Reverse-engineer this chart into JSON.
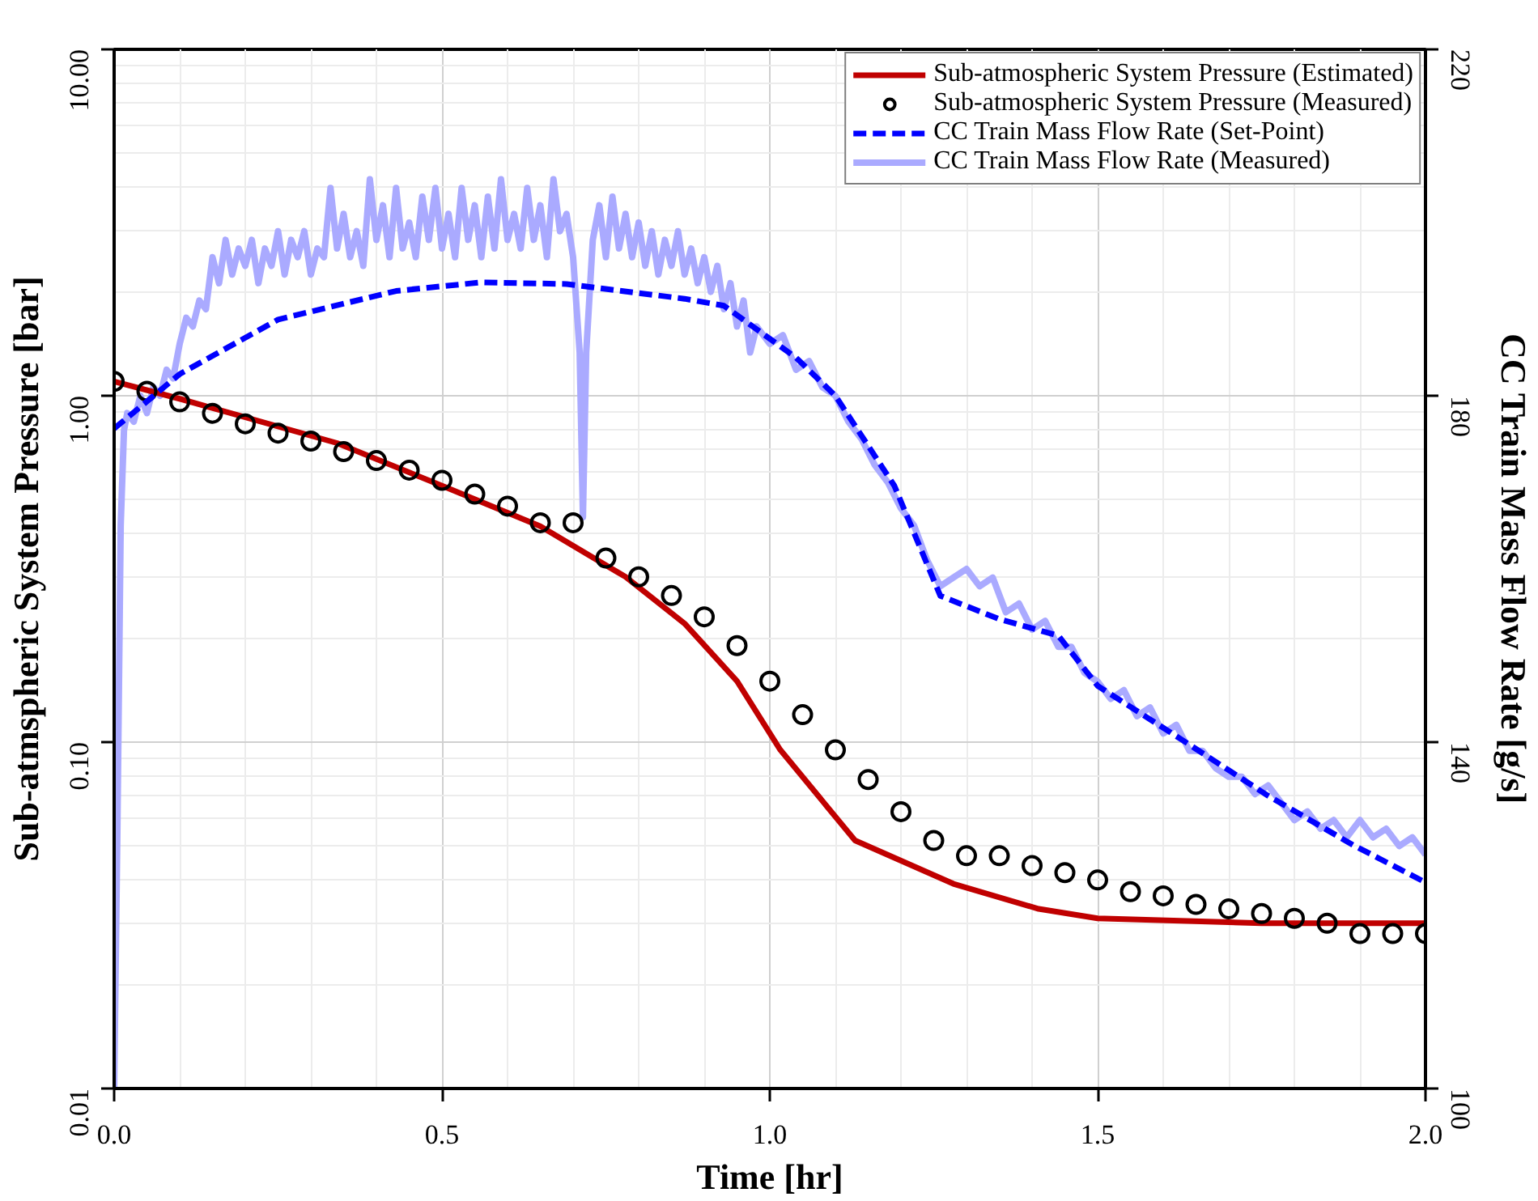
{
  "chart_data": {
    "type": "line",
    "xlabel": "Time [hr]",
    "ylabel": "Sub-atmspheric System Pressure [bar]",
    "y2label": "CC Train Mass Flow Rate [g/s]",
    "xlim": [
      0,
      2.0
    ],
    "xticks": [
      {
        "value": 0,
        "label": "0.0"
      },
      {
        "value": 0.5,
        "label": "0.5"
      },
      {
        "value": 1.0,
        "label": "1.0"
      },
      {
        "value": 1.5,
        "label": "1.5"
      },
      {
        "value": 2.0,
        "label": "2.0"
      }
    ],
    "ylim": [
      0.01,
      10
    ],
    "yticks": [
      {
        "value": 0.01,
        "label": "0.01"
      },
      {
        "value": 0.1,
        "label": "0.10"
      },
      {
        "value": 1,
        "label": "1.00"
      },
      {
        "value": 10,
        "label": "10.00"
      }
    ],
    "y2lim": [
      100,
      220
    ],
    "y2ticks": [
      100,
      140,
      180,
      220
    ],
    "log": "y",
    "grid": true,
    "legend": "top right",
    "series": [
      {
        "name": "Sub-atmospheric System Pressure (Estimated)",
        "color": "#c00000",
        "line_style": "solid",
        "x": [
          0,
          0.1,
          0.34,
          0.51,
          0.65,
          0.78,
          0.87,
          0.95,
          1.016,
          1.13,
          1.28,
          1.41,
          1.5,
          1.75,
          2.0
        ],
        "values": [
          1.1,
          0.98,
          0.73,
          0.54,
          0.42,
          0.3,
          0.22,
          0.15,
          0.095,
          0.052,
          0.039,
          0.033,
          0.031,
          0.03,
          0.03
        ]
      },
      {
        "name": "Sub-atmospheric System Pressure (Measured)",
        "type": "scatter",
        "marker": "circle",
        "color": "#000000",
        "x": [
          0,
          0.05,
          0.1,
          0.15,
          0.2,
          0.25,
          0.3,
          0.35,
          0.4,
          0.45,
          0.5,
          0.55,
          0.6,
          0.65,
          0.7,
          0.75,
          0.8,
          0.85,
          0.9,
          0.95,
          1.0,
          1.05,
          1.1,
          1.15,
          1.2,
          1.25,
          1.3,
          1.35,
          1.4,
          1.45,
          1.5,
          1.55,
          1.6,
          1.65,
          1.7,
          1.75,
          1.8,
          1.85,
          1.9,
          1.95,
          2.0
        ],
        "values": [
          1.1,
          1.03,
          0.96,
          0.89,
          0.83,
          0.78,
          0.74,
          0.69,
          0.65,
          0.61,
          0.57,
          0.52,
          0.48,
          0.43,
          0.43,
          0.34,
          0.3,
          0.265,
          0.23,
          0.19,
          0.15,
          0.12,
          0.095,
          0.078,
          0.063,
          0.052,
          0.047,
          0.047,
          0.044,
          0.042,
          0.04,
          0.037,
          0.036,
          0.034,
          0.033,
          0.032,
          0.031,
          0.03,
          0.028,
          0.028,
          0.028
        ]
      },
      {
        "name": "CC Train Mass Flow Rate (Set-Point)",
        "axis": "y2",
        "color": "#0000ff",
        "line_style": "dashed",
        "x": [
          0,
          0.1,
          0.25,
          0.43,
          0.56,
          0.69,
          0.87,
          0.93,
          1.04,
          1.1,
          1.19,
          1.26,
          1.35,
          1.44,
          1.5,
          1.63,
          1.76,
          1.89,
          2.0
        ],
        "values": [
          176.2,
          182.5,
          188.8,
          192.1,
          193.1,
          192.9,
          191.2,
          190.4,
          184.4,
          180,
          169.6,
          156.9,
          154.2,
          152.3,
          146.5,
          140.2,
          133.8,
          128.1,
          123.8
        ]
      },
      {
        "name": "CC Train Mass Flow Rate (Measured)",
        "axis": "y2",
        "color": "#aaaaff",
        "line_style": "solid",
        "x": [
          0.0,
          0.005,
          0.01,
          0.015,
          0.02,
          0.03,
          0.04,
          0.05,
          0.06,
          0.07,
          0.08,
          0.09,
          0.1,
          0.11,
          0.12,
          0.13,
          0.14,
          0.15,
          0.16,
          0.17,
          0.18,
          0.19,
          0.2,
          0.21,
          0.22,
          0.23,
          0.24,
          0.25,
          0.26,
          0.27,
          0.28,
          0.29,
          0.3,
          0.31,
          0.32,
          0.33,
          0.34,
          0.35,
          0.36,
          0.37,
          0.38,
          0.39,
          0.4,
          0.41,
          0.42,
          0.43,
          0.44,
          0.45,
          0.46,
          0.47,
          0.48,
          0.49,
          0.5,
          0.51,
          0.52,
          0.53,
          0.54,
          0.55,
          0.56,
          0.57,
          0.58,
          0.59,
          0.6,
          0.61,
          0.62,
          0.63,
          0.64,
          0.65,
          0.66,
          0.67,
          0.68,
          0.69,
          0.7,
          0.71,
          0.715,
          0.72,
          0.73,
          0.74,
          0.75,
          0.76,
          0.77,
          0.78,
          0.79,
          0.8,
          0.81,
          0.82,
          0.83,
          0.84,
          0.85,
          0.86,
          0.87,
          0.88,
          0.89,
          0.9,
          0.91,
          0.92,
          0.93,
          0.94,
          0.95,
          0.96,
          0.97,
          0.98,
          1.0,
          1.02,
          1.04,
          1.06,
          1.08,
          1.1,
          1.12,
          1.14,
          1.16,
          1.18,
          1.2,
          1.22,
          1.24,
          1.26,
          1.28,
          1.3,
          1.32,
          1.34,
          1.36,
          1.38,
          1.4,
          1.42,
          1.44,
          1.46,
          1.48,
          1.5,
          1.52,
          1.54,
          1.56,
          1.58,
          1.6,
          1.62,
          1.64,
          1.66,
          1.68,
          1.7,
          1.72,
          1.74,
          1.76,
          1.78,
          1.8,
          1.82,
          1.84,
          1.86,
          1.88,
          1.9,
          1.92,
          1.94,
          1.96,
          1.98,
          2.0
        ],
        "values": [
          100,
          130,
          165,
          176,
          178,
          177,
          180,
          178,
          181,
          180,
          183,
          182,
          186,
          189,
          188,
          191,
          190,
          196,
          193,
          198,
          194,
          197,
          195,
          198,
          193,
          197,
          195,
          199,
          194,
          198,
          196,
          199,
          194,
          197,
          196,
          204,
          197,
          201,
          196,
          199,
          195,
          205,
          198,
          202,
          196,
          204,
          197,
          200,
          196,
          203,
          198,
          204,
          197,
          201,
          196,
          204,
          198,
          202,
          196,
          203,
          197,
          205,
          198,
          201,
          197,
          204,
          198,
          202,
          196,
          205,
          199,
          201,
          196,
          185,
          166,
          185,
          198,
          202,
          196,
          203,
          197,
          201,
          196,
          200,
          195,
          199,
          194,
          198,
          195,
          199,
          194,
          197,
          193,
          196,
          192,
          195,
          190,
          193,
          188,
          191,
          185,
          188,
          186,
          187,
          183,
          184,
          181,
          180,
          177,
          175,
          172,
          170,
          167,
          165,
          161,
          158,
          159,
          160,
          158,
          159,
          155,
          156,
          153,
          154,
          151,
          151,
          148,
          147,
          145,
          146,
          143,
          144,
          141,
          142,
          139,
          139,
          137,
          136,
          136,
          134,
          135,
          133,
          131,
          132,
          130,
          131,
          129,
          131,
          129,
          130,
          128,
          129,
          127
        ]
      }
    ]
  }
}
